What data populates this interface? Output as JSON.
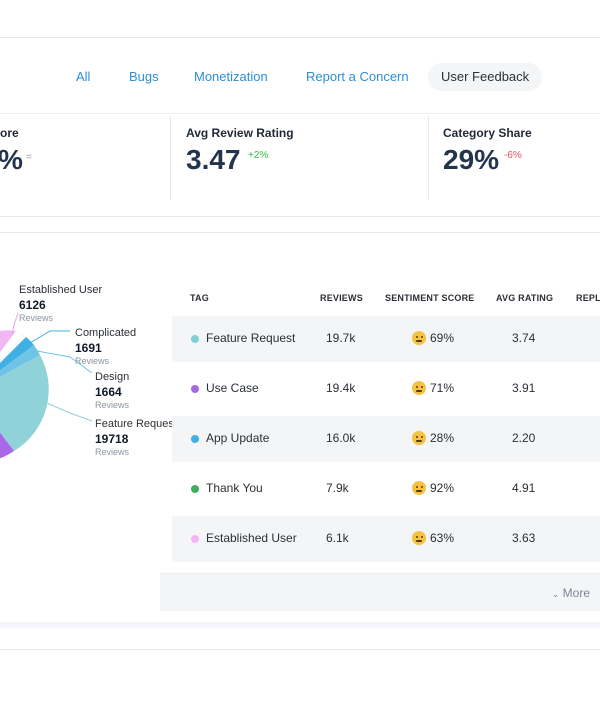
{
  "tabs": [
    {
      "label": "All"
    },
    {
      "label": "Bugs"
    },
    {
      "label": "Monetization"
    },
    {
      "label": "Report a Concern"
    },
    {
      "label": "User Feedback",
      "active": true
    }
  ],
  "metrics": [
    {
      "label": "ore",
      "value": "%",
      "delta": "="
    },
    {
      "label": "Avg Review Rating",
      "value": "3.47",
      "delta": "+2%"
    },
    {
      "label": "Category Share",
      "value": "29%",
      "delta": "-6%"
    }
  ],
  "colors": {
    "positive": "#39b54a",
    "negative": "#e5505f",
    "link": "#2d8ed6",
    "neutral": "#9aa3ad"
  },
  "pie": {
    "labels": [
      {
        "name": "Established User",
        "value": "6126",
        "sub": "Reviews"
      },
      {
        "name": "Complicated",
        "value": "1691",
        "sub": "Reviews"
      },
      {
        "name": "Design",
        "value": "1664",
        "sub": "Reviews"
      },
      {
        "name": "Feature Reques",
        "value": "19718",
        "sub": "Reviews"
      }
    ]
  },
  "table": {
    "headers": [
      "TAG",
      "REVIEWS",
      "SENTIMENT SCORE",
      "AVG RATING",
      "REPLY"
    ],
    "rows": [
      {
        "tag": "Feature Request",
        "color": "#7fcfd4",
        "reviews": "19.7k",
        "emoji": "slightly-smiling-face",
        "sentiment": "69%",
        "rating": "3.74"
      },
      {
        "tag": "Use Case",
        "color": "#a868e8",
        "reviews": "19.4k",
        "emoji": "slightly-smiling-face",
        "sentiment": "71%",
        "rating": "3.91"
      },
      {
        "tag": "App Update",
        "color": "#3fb0e3",
        "reviews": "16.0k",
        "emoji": "surprised-face",
        "sentiment": "28%",
        "rating": "2.20"
      },
      {
        "tag": "Thank You",
        "color": "#3fae5a",
        "reviews": "7.9k",
        "emoji": "star-struck-face",
        "sentiment": "92%",
        "rating": "4.91"
      },
      {
        "tag": "Established User",
        "color": "#f2b6f2",
        "reviews": "6.1k",
        "emoji": "slightly-smiling-face",
        "sentiment": "63%",
        "rating": "3.63"
      }
    ]
  },
  "more_label": "More"
}
